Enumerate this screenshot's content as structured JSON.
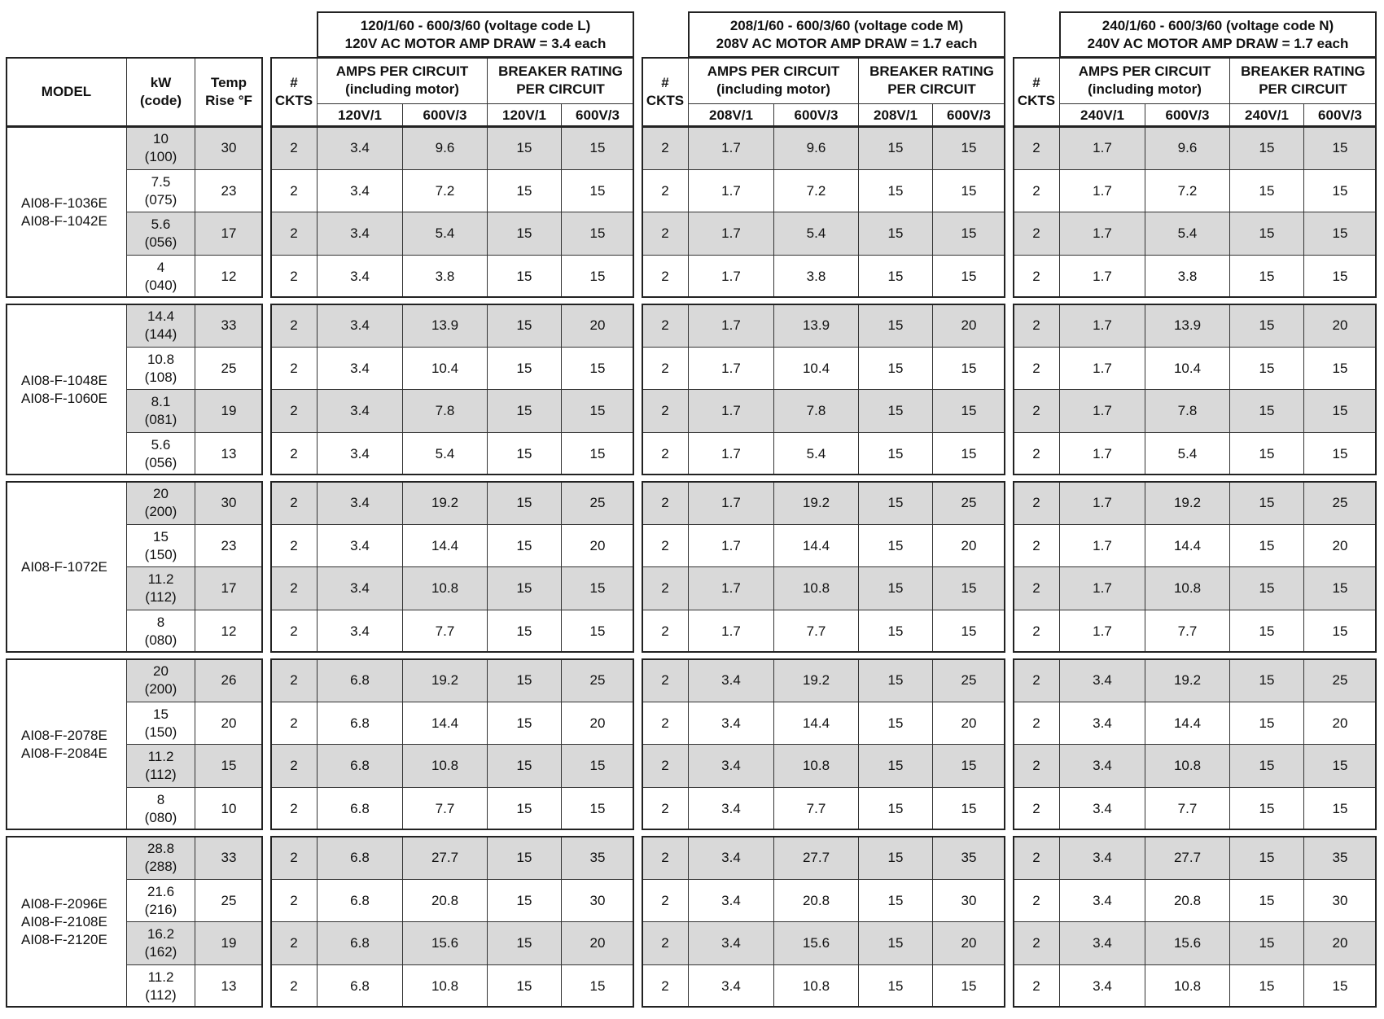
{
  "headers": {
    "model": "MODEL",
    "kw": [
      "kW",
      "(code)"
    ],
    "temp": [
      "Temp",
      "Rise °F"
    ],
    "ckts": [
      "#",
      "CKTS"
    ],
    "amps": [
      "AMPS PER CIRCUIT",
      "(including motor)"
    ],
    "breaker": [
      "BREAKER RATING",
      "PER CIRCUIT"
    ]
  },
  "sections": [
    {
      "title": "120/1/60 - 600/3/60 (voltage code L)",
      "motor": "120V AC MOTOR AMP DRAW = 3.4 each",
      "sub": [
        "120V/1",
        "600V/3",
        "120V/1",
        "600V/3"
      ]
    },
    {
      "title": "208/1/60 - 600/3/60 (voltage code M)",
      "motor": "208V AC MOTOR AMP DRAW = 1.7 each",
      "sub": [
        "208V/1",
        "600V/3",
        "208V/1",
        "600V/3"
      ]
    },
    {
      "title": "240/1/60 - 600/3/60 (voltage code N)",
      "motor": "240V AC MOTOR AMP DRAW = 1.7 each",
      "sub": [
        "240V/1",
        "600V/3",
        "240V/1",
        "600V/3"
      ]
    }
  ],
  "groups": [
    {
      "models": [
        "AI08-F-1036E",
        "AI08-F-1042E"
      ],
      "rows": [
        {
          "kw": "10",
          "code": "(100)",
          "temp": "30",
          "ckts": "2",
          "vals": [
            [
              "3.4",
              "9.6",
              "15",
              "15"
            ],
            [
              "1.7",
              "9.6",
              "15",
              "15"
            ],
            [
              "1.7",
              "9.6",
              "15",
              "15"
            ]
          ]
        },
        {
          "kw": "7.5",
          "code": "(075)",
          "temp": "23",
          "ckts": "2",
          "vals": [
            [
              "3.4",
              "7.2",
              "15",
              "15"
            ],
            [
              "1.7",
              "7.2",
              "15",
              "15"
            ],
            [
              "1.7",
              "7.2",
              "15",
              "15"
            ]
          ]
        },
        {
          "kw": "5.6",
          "code": "(056)",
          "temp": "17",
          "ckts": "2",
          "vals": [
            [
              "3.4",
              "5.4",
              "15",
              "15"
            ],
            [
              "1.7",
              "5.4",
              "15",
              "15"
            ],
            [
              "1.7",
              "5.4",
              "15",
              "15"
            ]
          ]
        },
        {
          "kw": "4",
          "code": "(040)",
          "temp": "12",
          "ckts": "2",
          "vals": [
            [
              "3.4",
              "3.8",
              "15",
              "15"
            ],
            [
              "1.7",
              "3.8",
              "15",
              "15"
            ],
            [
              "1.7",
              "3.8",
              "15",
              "15"
            ]
          ]
        }
      ]
    },
    {
      "models": [
        "AI08-F-1048E",
        "AI08-F-1060E"
      ],
      "rows": [
        {
          "kw": "14.4",
          "code": "(144)",
          "temp": "33",
          "ckts": "2",
          "vals": [
            [
              "3.4",
              "13.9",
              "15",
              "20"
            ],
            [
              "1.7",
              "13.9",
              "15",
              "20"
            ],
            [
              "1.7",
              "13.9",
              "15",
              "20"
            ]
          ]
        },
        {
          "kw": "10.8",
          "code": "(108)",
          "temp": "25",
          "ckts": "2",
          "vals": [
            [
              "3.4",
              "10.4",
              "15",
              "15"
            ],
            [
              "1.7",
              "10.4",
              "15",
              "15"
            ],
            [
              "1.7",
              "10.4",
              "15",
              "15"
            ]
          ]
        },
        {
          "kw": "8.1",
          "code": "(081)",
          "temp": "19",
          "ckts": "2",
          "vals": [
            [
              "3.4",
              "7.8",
              "15",
              "15"
            ],
            [
              "1.7",
              "7.8",
              "15",
              "15"
            ],
            [
              "1.7",
              "7.8",
              "15",
              "15"
            ]
          ]
        },
        {
          "kw": "5.6",
          "code": "(056)",
          "temp": "13",
          "ckts": "2",
          "vals": [
            [
              "3.4",
              "5.4",
              "15",
              "15"
            ],
            [
              "1.7",
              "5.4",
              "15",
              "15"
            ],
            [
              "1.7",
              "5.4",
              "15",
              "15"
            ]
          ]
        }
      ]
    },
    {
      "models": [
        "AI08-F-1072E"
      ],
      "rows": [
        {
          "kw": "20",
          "code": "(200)",
          "temp": "30",
          "ckts": "2",
          "vals": [
            [
              "3.4",
              "19.2",
              "15",
              "25"
            ],
            [
              "1.7",
              "19.2",
              "15",
              "25"
            ],
            [
              "1.7",
              "19.2",
              "15",
              "25"
            ]
          ]
        },
        {
          "kw": "15",
          "code": "(150)",
          "temp": "23",
          "ckts": "2",
          "vals": [
            [
              "3.4",
              "14.4",
              "15",
              "20"
            ],
            [
              "1.7",
              "14.4",
              "15",
              "20"
            ],
            [
              "1.7",
              "14.4",
              "15",
              "20"
            ]
          ]
        },
        {
          "kw": "11.2",
          "code": "(112)",
          "temp": "17",
          "ckts": "2",
          "vals": [
            [
              "3.4",
              "10.8",
              "15",
              "15"
            ],
            [
              "1.7",
              "10.8",
              "15",
              "15"
            ],
            [
              "1.7",
              "10.8",
              "15",
              "15"
            ]
          ]
        },
        {
          "kw": "8",
          "code": "(080)",
          "temp": "12",
          "ckts": "2",
          "vals": [
            [
              "3.4",
              "7.7",
              "15",
              "15"
            ],
            [
              "1.7",
              "7.7",
              "15",
              "15"
            ],
            [
              "1.7",
              "7.7",
              "15",
              "15"
            ]
          ]
        }
      ]
    },
    {
      "models": [
        "AI08-F-2078E",
        "AI08-F-2084E"
      ],
      "rows": [
        {
          "kw": "20",
          "code": "(200)",
          "temp": "26",
          "ckts": "2",
          "vals": [
            [
              "6.8",
              "19.2",
              "15",
              "25"
            ],
            [
              "3.4",
              "19.2",
              "15",
              "25"
            ],
            [
              "3.4",
              "19.2",
              "15",
              "25"
            ]
          ]
        },
        {
          "kw": "15",
          "code": "(150)",
          "temp": "20",
          "ckts": "2",
          "vals": [
            [
              "6.8",
              "14.4",
              "15",
              "20"
            ],
            [
              "3.4",
              "14.4",
              "15",
              "20"
            ],
            [
              "3.4",
              "14.4",
              "15",
              "20"
            ]
          ]
        },
        {
          "kw": "11.2",
          "code": "(112)",
          "temp": "15",
          "ckts": "2",
          "vals": [
            [
              "6.8",
              "10.8",
              "15",
              "15"
            ],
            [
              "3.4",
              "10.8",
              "15",
              "15"
            ],
            [
              "3.4",
              "10.8",
              "15",
              "15"
            ]
          ]
        },
        {
          "kw": "8",
          "code": "(080)",
          "temp": "10",
          "ckts": "2",
          "vals": [
            [
              "6.8",
              "7.7",
              "15",
              "15"
            ],
            [
              "3.4",
              "7.7",
              "15",
              "15"
            ],
            [
              "3.4",
              "7.7",
              "15",
              "15"
            ]
          ]
        }
      ]
    },
    {
      "models": [
        "AI08-F-2096E",
        "AI08-F-2108E",
        "AI08-F-2120E"
      ],
      "rows": [
        {
          "kw": "28.8",
          "code": "(288)",
          "temp": "33",
          "ckts": "2",
          "vals": [
            [
              "6.8",
              "27.7",
              "15",
              "35"
            ],
            [
              "3.4",
              "27.7",
              "15",
              "35"
            ],
            [
              "3.4",
              "27.7",
              "15",
              "35"
            ]
          ]
        },
        {
          "kw": "21.6",
          "code": "(216)",
          "temp": "25",
          "ckts": "2",
          "vals": [
            [
              "6.8",
              "20.8",
              "15",
              "30"
            ],
            [
              "3.4",
              "20.8",
              "15",
              "30"
            ],
            [
              "3.4",
              "20.8",
              "15",
              "30"
            ]
          ]
        },
        {
          "kw": "16.2",
          "code": "(162)",
          "temp": "19",
          "ckts": "2",
          "vals": [
            [
              "6.8",
              "15.6",
              "15",
              "20"
            ],
            [
              "3.4",
              "15.6",
              "15",
              "20"
            ],
            [
              "3.4",
              "15.6",
              "15",
              "20"
            ]
          ]
        },
        {
          "kw": "11.2",
          "code": "(112)",
          "temp": "13",
          "ckts": "2",
          "vals": [
            [
              "6.8",
              "10.8",
              "15",
              "15"
            ],
            [
              "3.4",
              "10.8",
              "15",
              "15"
            ],
            [
              "3.4",
              "10.8",
              "15",
              "15"
            ]
          ]
        }
      ]
    }
  ],
  "colors": {
    "shaded_row": "#d9d9d9",
    "border": "#222222"
  }
}
